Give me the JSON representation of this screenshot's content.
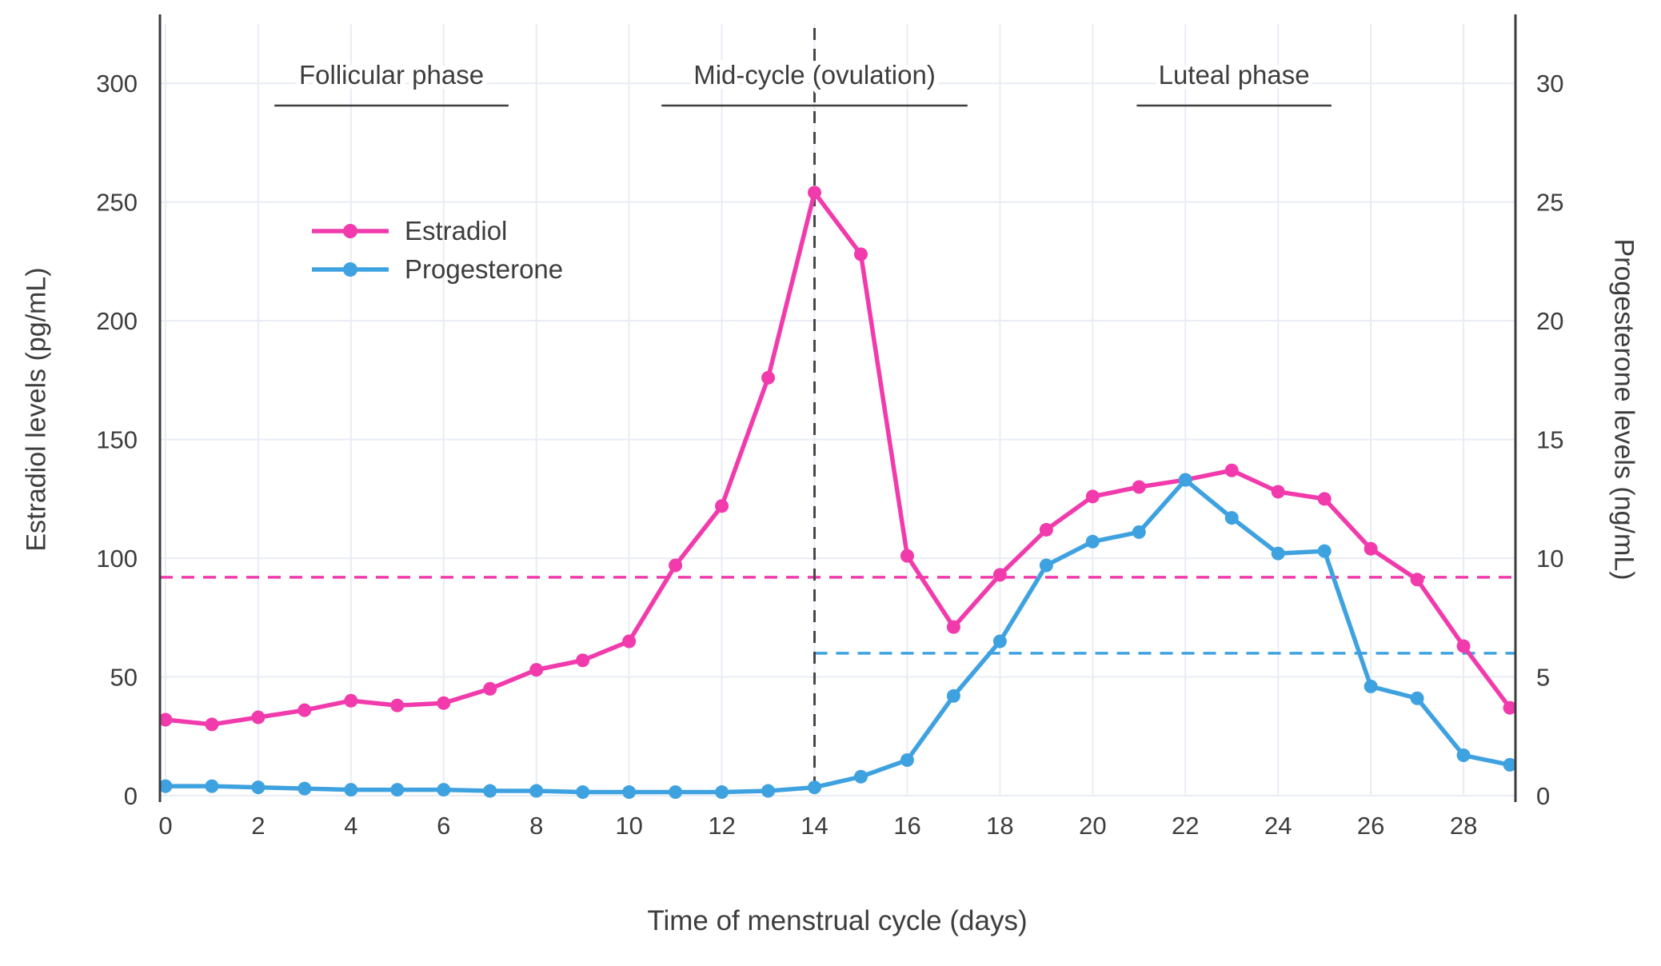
{
  "figure": {
    "background": "#ffffff",
    "text_color": "#3d3d3d",
    "grid_color": "#e9ecf5",
    "spine_color": "#3c3c3c"
  },
  "chart_data": {
    "type": "line",
    "title": "",
    "xlabel": "Time of menstrual cycle (days)",
    "x": [
      0,
      1,
      2,
      3,
      4,
      5,
      6,
      7,
      8,
      9,
      10,
      11,
      12,
      13,
      14,
      15,
      16,
      17,
      18,
      19,
      20,
      21,
      22,
      23,
      24,
      25,
      26,
      27,
      28,
      29
    ],
    "x_ticks": [
      0,
      2,
      4,
      6,
      8,
      10,
      12,
      14,
      16,
      18,
      20,
      22,
      24,
      26,
      28
    ],
    "x_range": [
      -0.12,
      29.12
    ],
    "left_axis": {
      "label": "Estradiol levels (pg/mL)",
      "ticks": [
        0,
        50,
        100,
        150,
        200,
        250,
        300
      ],
      "range": [
        0,
        325
      ]
    },
    "right_axis": {
      "label": "Progesterone levels (ng/mL)",
      "ticks": [
        0,
        5,
        10,
        15,
        20,
        25,
        30
      ],
      "range": [
        0,
        32.5
      ]
    },
    "series": [
      {
        "name": "Estradiol",
        "axis": "left",
        "color": "#f13bac",
        "values": [
          32,
          30,
          33,
          36,
          40,
          38,
          39,
          45,
          53,
          57,
          65,
          97,
          122,
          176,
          254,
          228,
          101,
          71,
          93,
          112,
          126,
          130,
          133,
          137,
          128,
          125,
          104,
          91,
          63,
          37
        ]
      },
      {
        "name": "Progesterone",
        "axis": "right",
        "color": "#3fa2e0",
        "values": [
          0.4,
          0.4,
          0.35,
          0.3,
          0.25,
          0.25,
          0.25,
          0.2,
          0.2,
          0.15,
          0.15,
          0.15,
          0.15,
          0.2,
          0.35,
          0.8,
          1.5,
          4.2,
          6.5,
          9.7,
          10.7,
          11.1,
          13.3,
          11.7,
          10.2,
          10.3,
          4.6,
          4.1,
          1.7,
          1.3
        ]
      }
    ],
    "reference_lines": [
      {
        "type": "horizontal",
        "axis": "left",
        "value": 92,
        "color": "#f13bac",
        "dash": "16 11",
        "x_from": -0.12,
        "x_to": 29.12
      },
      {
        "type": "horizontal",
        "axis": "right",
        "value": 6,
        "color": "#3fa2e0",
        "dash": "16 11",
        "x_from": 14,
        "x_to": 29.12
      },
      {
        "type": "vertical",
        "x": 14,
        "color": "#474747",
        "dash": "15 11"
      }
    ],
    "phase_annotations": [
      {
        "label": "Follicular phase",
        "from_day": 2.35,
        "to_day": 7.4
      },
      {
        "label": "Mid-cycle (ovulation)",
        "from_day": 10.7,
        "to_day": 17.3
      },
      {
        "label": "Luteal phase",
        "from_day": 20.95,
        "to_day": 25.15
      }
    ],
    "legend": {
      "position": "upper-left",
      "items": [
        "Estradiol",
        "Progesterone"
      ]
    }
  }
}
